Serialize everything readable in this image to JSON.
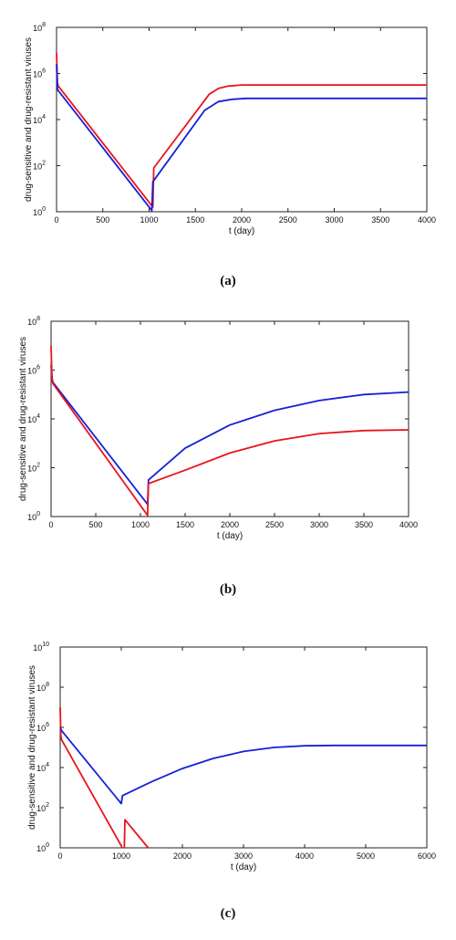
{
  "chart_data": [
    {
      "type": "line",
      "caption": "(a)",
      "xlabel": "t (day)",
      "ylabel": "drug-sensitive and drug-resistant viruses",
      "xlim": [
        0,
        4000
      ],
      "ylim_exponent": [
        0,
        8
      ],
      "yscale": "log",
      "xticks": [
        "0",
        "500",
        "1000",
        "1500",
        "2000",
        "2500",
        "3000",
        "3500",
        "4000"
      ],
      "yticks": [
        [
          "10",
          "0"
        ],
        [
          "10",
          "2"
        ],
        [
          "10",
          "4"
        ],
        [
          "10",
          "6"
        ],
        [
          "10",
          "8"
        ]
      ],
      "grid": false,
      "series": [
        {
          "color": "#e8141c",
          "points": [
            [
              0,
              6.9
            ],
            [
              10,
              5.6
            ],
            [
              20,
              5.45
            ],
            [
              1040,
              0.2
            ],
            [
              1050,
              1.9
            ],
            [
              1650,
              5.1
            ],
            [
              1750,
              5.35
            ],
            [
              1850,
              5.45
            ],
            [
              2000,
              5.5
            ],
            [
              4000,
              5.5
            ]
          ]
        },
        {
          "color": "#1520d8",
          "points": [
            [
              0,
              6.4
            ],
            [
              10,
              5.3
            ],
            [
              20,
              5.25
            ],
            [
              1030,
              0.05
            ],
            [
              1040,
              1.3
            ],
            [
              1600,
              4.4
            ],
            [
              1750,
              4.78
            ],
            [
              1900,
              4.88
            ],
            [
              2050,
              4.92
            ],
            [
              4000,
              4.92
            ]
          ]
        }
      ]
    },
    {
      "type": "line",
      "caption": "(b)",
      "xlabel": "t (day)",
      "ylabel": "drug-sensitive and drug-resistant viruses",
      "xlim": [
        0,
        4000
      ],
      "ylim_exponent": [
        0,
        8
      ],
      "yscale": "log",
      "xticks": [
        "0",
        "500",
        "1000",
        "1500",
        "2000",
        "2500",
        "3000",
        "3500",
        "4000"
      ],
      "yticks": [
        [
          "10",
          "0"
        ],
        [
          "10",
          "2"
        ],
        [
          "10",
          "4"
        ],
        [
          "10",
          "6"
        ],
        [
          "10",
          "8"
        ]
      ],
      "grid": false,
      "series": [
        {
          "color": "#1520d8",
          "points": [
            [
              0,
              6.2
            ],
            [
              10,
              5.7
            ],
            [
              20,
              5.5
            ],
            [
              1080,
              0.5
            ],
            [
              1090,
              1.5
            ],
            [
              1500,
              2.8
            ],
            [
              2000,
              3.75
            ],
            [
              2500,
              4.35
            ],
            [
              3000,
              4.75
            ],
            [
              3500,
              5.0
            ],
            [
              4000,
              5.1
            ]
          ]
        },
        {
          "color": "#e8141c",
          "points": [
            [
              0,
              7.0
            ],
            [
              10,
              5.6
            ],
            [
              20,
              5.45
            ],
            [
              1080,
              0.05
            ],
            [
              1090,
              1.35
            ],
            [
              1500,
              1.9
            ],
            [
              2000,
              2.6
            ],
            [
              2500,
              3.1
            ],
            [
              3000,
              3.4
            ],
            [
              3500,
              3.52
            ],
            [
              4000,
              3.55
            ]
          ]
        }
      ]
    },
    {
      "type": "line",
      "caption": "(c)",
      "xlabel": "t (day)",
      "ylabel": "drug-sensitive and drug-resistant viruses",
      "xlim": [
        0,
        6000
      ],
      "ylim_exponent": [
        0,
        10
      ],
      "yscale": "log",
      "xticks": [
        "0",
        "1000",
        "2000",
        "3000",
        "4000",
        "5000",
        "6000"
      ],
      "yticks": [
        [
          "10",
          "0"
        ],
        [
          "10",
          "2"
        ],
        [
          "10",
          "4"
        ],
        [
          "10",
          "6"
        ],
        [
          "10",
          "8"
        ],
        [
          "10",
          "10"
        ]
      ],
      "grid": false,
      "series": [
        {
          "color": "#e8141c",
          "points": [
            [
              0,
              7.0
            ],
            [
              10,
              5.6
            ],
            [
              20,
              5.4
            ],
            [
              1000,
              0.1
            ],
            [
              1010,
              0.0
            ]
          ]
        },
        {
          "color": "#e8141c",
          "points": [
            [
              1050,
              0.0
            ],
            [
              1060,
              1.4
            ],
            [
              1440,
              0.0
            ]
          ]
        },
        {
          "color": "#1520d8",
          "points": [
            [
              0,
              6.0
            ],
            [
              20,
              5.85
            ],
            [
              1000,
              2.2
            ],
            [
              1020,
              2.6
            ],
            [
              1500,
              3.3
            ],
            [
              2000,
              3.95
            ],
            [
              2500,
              4.45
            ],
            [
              3000,
              4.8
            ],
            [
              3500,
              5.0
            ],
            [
              4000,
              5.08
            ],
            [
              4500,
              5.1
            ],
            [
              6000,
              5.1
            ]
          ]
        }
      ]
    }
  ]
}
